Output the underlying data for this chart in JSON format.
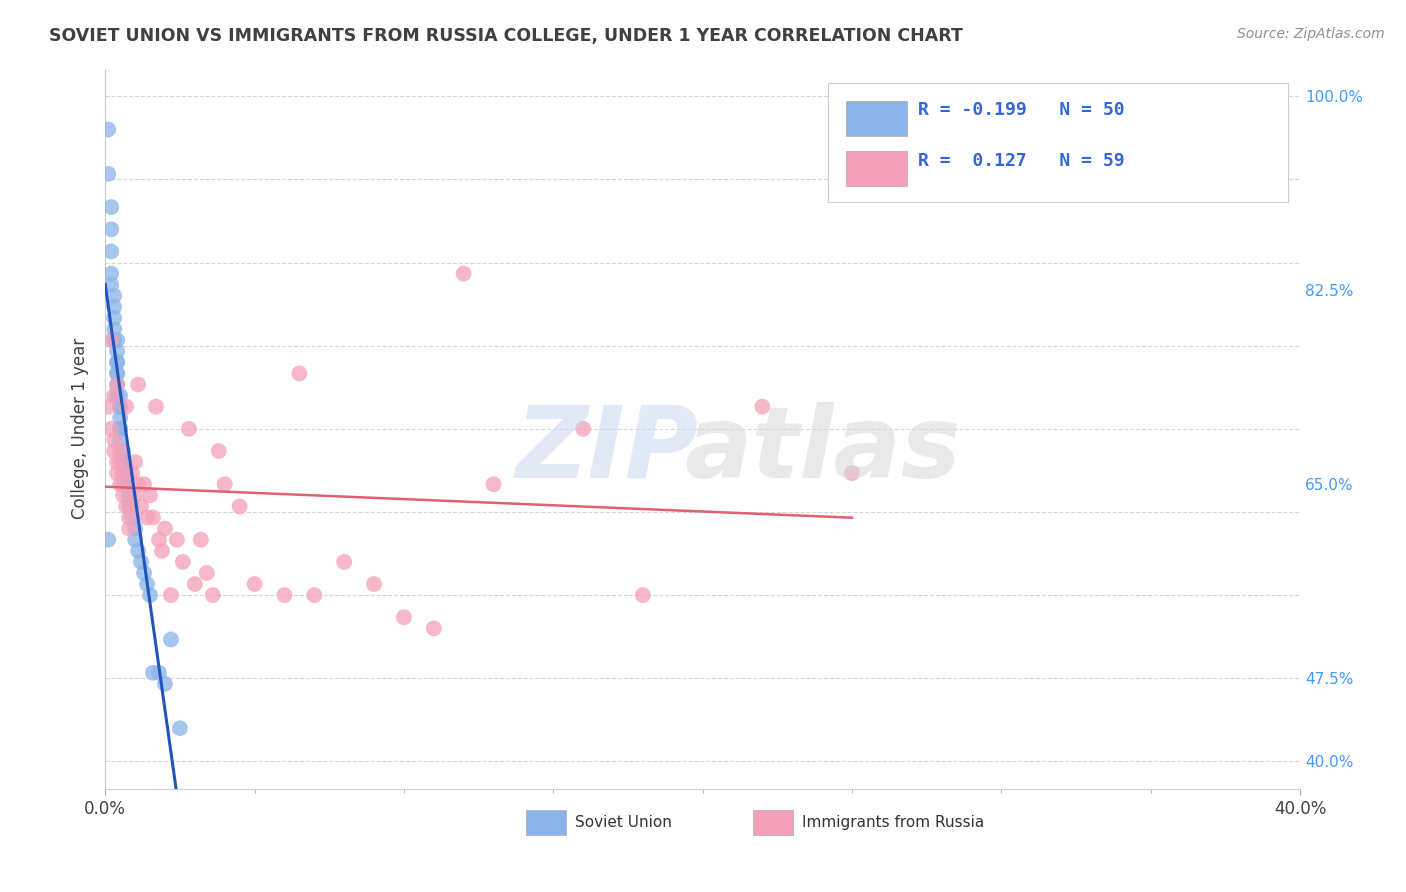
{
  "title": "SOVIET UNION VS IMMIGRANTS FROM RUSSIA COLLEGE, UNDER 1 YEAR CORRELATION CHART",
  "source_text": "Source: ZipAtlas.com",
  "ylabel": "College, Under 1 year",
  "xlim": [
    0.0,
    0.4
  ],
  "ylim": [
    0.375,
    1.025
  ],
  "right_yticks": [
    0.4,
    0.475,
    0.65,
    0.825,
    1.0
  ],
  "right_ytick_labels": [
    "40.0%",
    "47.5%",
    "65.0%",
    "82.5%",
    "100.0%"
  ],
  "xticks": [
    0.0,
    0.4
  ],
  "xtick_labels": [
    "0.0%",
    "40.0%"
  ],
  "blue_color": "#8AB4E8",
  "pink_color": "#F4A0B8",
  "blue_line_color": "#2255BB",
  "pink_line_color": "#E06070",
  "legend_r_blue": "-0.199",
  "legend_n_blue": "50",
  "legend_r_pink": "0.127",
  "legend_n_pink": "59",
  "blue_scatter_x": [
    0.001,
    0.001,
    0.002,
    0.002,
    0.002,
    0.002,
    0.002,
    0.003,
    0.003,
    0.003,
    0.003,
    0.003,
    0.004,
    0.004,
    0.004,
    0.004,
    0.004,
    0.004,
    0.004,
    0.004,
    0.005,
    0.005,
    0.005,
    0.005,
    0.005,
    0.005,
    0.005,
    0.006,
    0.006,
    0.006,
    0.006,
    0.007,
    0.007,
    0.007,
    0.008,
    0.008,
    0.009,
    0.01,
    0.01,
    0.011,
    0.012,
    0.013,
    0.014,
    0.015,
    0.016,
    0.018,
    0.02,
    0.022,
    0.025,
    0.001
  ],
  "blue_scatter_y": [
    0.97,
    0.93,
    0.9,
    0.88,
    0.86,
    0.84,
    0.83,
    0.82,
    0.81,
    0.8,
    0.79,
    0.78,
    0.78,
    0.77,
    0.76,
    0.76,
    0.75,
    0.75,
    0.74,
    0.73,
    0.73,
    0.72,
    0.72,
    0.71,
    0.7,
    0.7,
    0.69,
    0.68,
    0.67,
    0.67,
    0.66,
    0.66,
    0.65,
    0.65,
    0.64,
    0.63,
    0.62,
    0.61,
    0.6,
    0.59,
    0.58,
    0.57,
    0.56,
    0.55,
    0.48,
    0.48,
    0.47,
    0.51,
    0.43,
    0.6
  ],
  "pink_scatter_x": [
    0.001,
    0.002,
    0.002,
    0.003,
    0.003,
    0.003,
    0.004,
    0.004,
    0.004,
    0.005,
    0.005,
    0.005,
    0.006,
    0.006,
    0.006,
    0.007,
    0.007,
    0.008,
    0.008,
    0.009,
    0.009,
    0.01,
    0.01,
    0.011,
    0.011,
    0.012,
    0.013,
    0.014,
    0.015,
    0.016,
    0.017,
    0.018,
    0.019,
    0.02,
    0.022,
    0.024,
    0.026,
    0.028,
    0.03,
    0.032,
    0.034,
    0.036,
    0.038,
    0.04,
    0.045,
    0.05,
    0.06,
    0.065,
    0.07,
    0.08,
    0.09,
    0.1,
    0.11,
    0.12,
    0.13,
    0.16,
    0.18,
    0.22,
    0.25
  ],
  "pink_scatter_y": [
    0.72,
    0.7,
    0.78,
    0.68,
    0.73,
    0.69,
    0.67,
    0.66,
    0.74,
    0.68,
    0.67,
    0.65,
    0.66,
    0.65,
    0.64,
    0.63,
    0.72,
    0.62,
    0.61,
    0.66,
    0.63,
    0.67,
    0.64,
    0.74,
    0.65,
    0.63,
    0.65,
    0.62,
    0.64,
    0.62,
    0.72,
    0.6,
    0.59,
    0.61,
    0.55,
    0.6,
    0.58,
    0.7,
    0.56,
    0.6,
    0.57,
    0.55,
    0.68,
    0.65,
    0.63,
    0.56,
    0.55,
    0.75,
    0.55,
    0.58,
    0.56,
    0.53,
    0.52,
    0.84,
    0.65,
    0.7,
    0.55,
    0.72,
    0.66
  ],
  "grid_color": "#CCCCCC",
  "background_color": "#FFFFFF",
  "title_color": "#404040",
  "source_color": "#909090"
}
